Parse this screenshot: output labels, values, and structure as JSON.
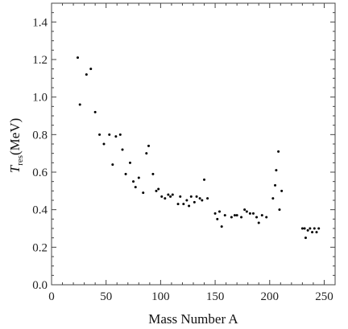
{
  "chart_data": {
    "type": "scatter",
    "title": "",
    "xlabel": "Mass Number A",
    "ylabel_main": "T",
    "ylabel_sub": "res",
    "ylabel_unit": "(MeV)",
    "xlim": [
      0,
      260
    ],
    "ylim": [
      0,
      1.5
    ],
    "xticks": [
      0,
      50,
      100,
      150,
      200,
      250
    ],
    "xtick_labels": [
      "0",
      "50",
      "100",
      "150",
      "200",
      "250"
    ],
    "yticks": [
      0.0,
      0.2,
      0.4,
      0.6,
      0.8,
      1.0,
      1.2,
      1.4
    ],
    "ytick_labels": [
      "0.0",
      "0.2",
      "0.4",
      "0.6",
      "0.8",
      "1.0",
      "1.2",
      "1.4"
    ],
    "grid": false,
    "point_color": "#000000",
    "points": [
      [
        24,
        1.21
      ],
      [
        26,
        0.96
      ],
      [
        32,
        1.12
      ],
      [
        36,
        1.15
      ],
      [
        40,
        0.92
      ],
      [
        44,
        0.8
      ],
      [
        48,
        0.75
      ],
      [
        53,
        0.8
      ],
      [
        56,
        0.64
      ],
      [
        59,
        0.79
      ],
      [
        63,
        0.8
      ],
      [
        65,
        0.72
      ],
      [
        68,
        0.59
      ],
      [
        72,
        0.65
      ],
      [
        75,
        0.55
      ],
      [
        77,
        0.52
      ],
      [
        80,
        0.57
      ],
      [
        84,
        0.49
      ],
      [
        87,
        0.7
      ],
      [
        89,
        0.74
      ],
      [
        93,
        0.59
      ],
      [
        96,
        0.5
      ],
      [
        98,
        0.51
      ],
      [
        101,
        0.47
      ],
      [
        104,
        0.46
      ],
      [
        107,
        0.48
      ],
      [
        109,
        0.47
      ],
      [
        111,
        0.48
      ],
      [
        116,
        0.43
      ],
      [
        118,
        0.47
      ],
      [
        121,
        0.43
      ],
      [
        124,
        0.45
      ],
      [
        126,
        0.42
      ],
      [
        128,
        0.47
      ],
      [
        131,
        0.44
      ],
      [
        133,
        0.47
      ],
      [
        136,
        0.46
      ],
      [
        138,
        0.45
      ],
      [
        140,
        0.56
      ],
      [
        143,
        0.46
      ],
      [
        150,
        0.38
      ],
      [
        152,
        0.35
      ],
      [
        154,
        0.39
      ],
      [
        156,
        0.31
      ],
      [
        159,
        0.37
      ],
      [
        165,
        0.36
      ],
      [
        168,
        0.37
      ],
      [
        170,
        0.37
      ],
      [
        174,
        0.36
      ],
      [
        177,
        0.4
      ],
      [
        179,
        0.39
      ],
      [
        182,
        0.38
      ],
      [
        185,
        0.38
      ],
      [
        188,
        0.36
      ],
      [
        190,
        0.33
      ],
      [
        193,
        0.37
      ],
      [
        197,
        0.36
      ],
      [
        203,
        0.46
      ],
      [
        205,
        0.53
      ],
      [
        206,
        0.61
      ],
      [
        208,
        0.71
      ],
      [
        209,
        0.4
      ],
      [
        211,
        0.5
      ],
      [
        230,
        0.3
      ],
      [
        232,
        0.3
      ],
      [
        233,
        0.25
      ],
      [
        235,
        0.29
      ],
      [
        237,
        0.3
      ],
      [
        239,
        0.28
      ],
      [
        241,
        0.3
      ],
      [
        243,
        0.28
      ],
      [
        245,
        0.3
      ]
    ]
  }
}
